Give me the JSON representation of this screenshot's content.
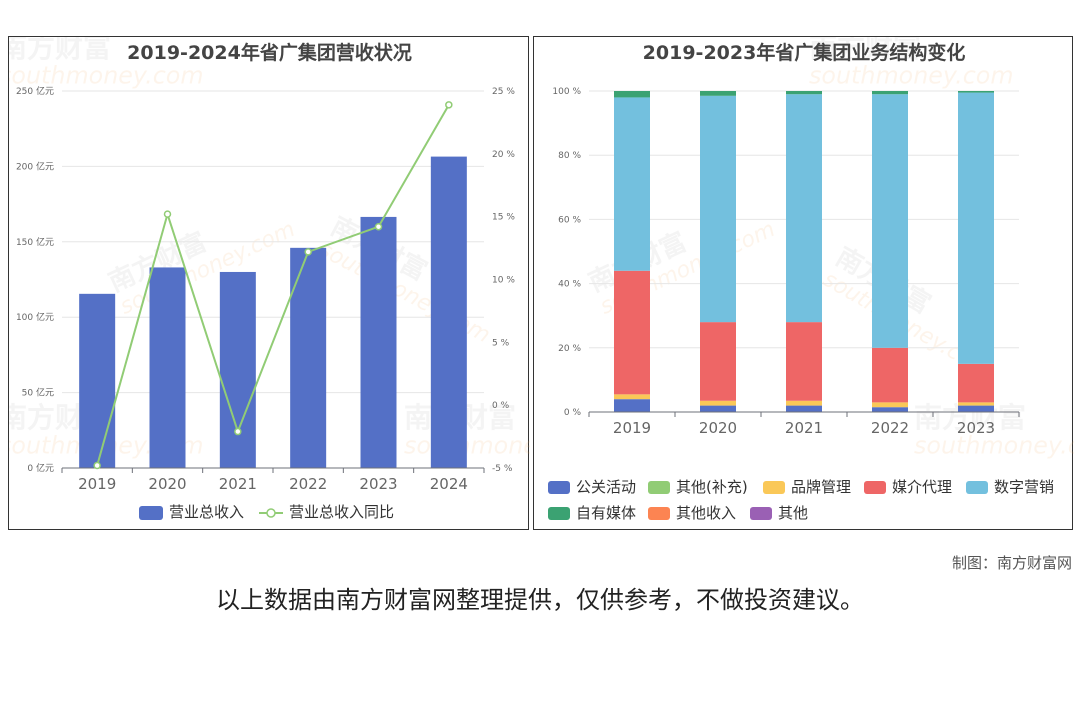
{
  "left_chart": {
    "title": "2019-2024年省广集团营收状况",
    "y_left_ticks": [
      "250 亿元",
      "200 亿元",
      "150 亿元",
      "100 亿元",
      "50 亿元",
      "0 亿元"
    ],
    "y_right_ticks": [
      "25 %",
      "20 %",
      "15 %",
      "10 %",
      "5 %",
      "0 %",
      "-5 %"
    ],
    "legend": [
      "营业总收入",
      "营业总收入同比"
    ]
  },
  "right_chart": {
    "title": "2019-2023年省广集团业务结构变化",
    "y_ticks": [
      "100 %",
      "80 %",
      "60 %",
      "40 %",
      "20 %",
      "0 %"
    ],
    "legend": [
      "公关活动",
      "其他(补充)",
      "品牌管理",
      "媒介代理",
      "数字营销",
      "自有媒体",
      "其他收入",
      "其他"
    ]
  },
  "chart_data": [
    {
      "type": "bar",
      "title": "2019-2024年省广集团营收状况",
      "categories": [
        "2019",
        "2020",
        "2021",
        "2022",
        "2023",
        "2024"
      ],
      "series": [
        {
          "name": "营业总收入",
          "type": "bar",
          "axis": "left",
          "unit": "亿元",
          "values": [
            115.5,
            133,
            130,
            146,
            166.5,
            206.5
          ]
        },
        {
          "name": "营业总收入同比",
          "type": "line",
          "axis": "right",
          "unit": "%",
          "values": [
            -4.8,
            15.2,
            -2.1,
            12.2,
            14.2,
            23.9
          ]
        }
      ],
      "ylim_left": [
        0,
        250
      ],
      "ylim_right": [
        -5,
        25
      ],
      "grid": true,
      "legend_position": "bottom",
      "colors": {
        "bar": "#5470c6",
        "line": "#91cc75"
      }
    },
    {
      "type": "bar",
      "stacked": true,
      "title": "2019-2023年省广集团业务结构变化",
      "categories": [
        "2019",
        "2020",
        "2021",
        "2022",
        "2023"
      ],
      "series": [
        {
          "name": "公关活动",
          "color": "#5470c6",
          "values": [
            4,
            2,
            2,
            1.5,
            2
          ]
        },
        {
          "name": "其他(补充)",
          "color": "#91cc75",
          "values": [
            0,
            0,
            0,
            0,
            0
          ]
        },
        {
          "name": "品牌管理",
          "color": "#fac858",
          "values": [
            1.5,
            1.5,
            1.5,
            1.5,
            1
          ]
        },
        {
          "name": "媒介代理",
          "color": "#ee6666",
          "values": [
            38.5,
            24.5,
            24.5,
            17,
            12
          ]
        },
        {
          "name": "数字营销",
          "color": "#73c0de",
          "values": [
            54,
            70.5,
            71,
            79,
            84.5
          ]
        },
        {
          "name": "自有媒体",
          "color": "#3ba272",
          "values": [
            2,
            1.5,
            1,
            1,
            0.5
          ]
        },
        {
          "name": "其他收入",
          "color": "#fc8452",
          "values": [
            0,
            0,
            0,
            0,
            0
          ]
        },
        {
          "name": "其他",
          "color": "#9a60b4",
          "values": [
            0,
            0,
            0,
            0,
            0
          ]
        }
      ],
      "ylim": [
        0,
        100
      ],
      "unit": "%",
      "grid": true,
      "legend_position": "bottom"
    }
  ],
  "footer": {
    "credit": "制图：南方财富网",
    "note": "以上数据由南方财富网整理提供，仅供参考，不做投资建议。"
  },
  "watermark": {
    "cn": "南方财富",
    "en": "southmoney.com"
  }
}
